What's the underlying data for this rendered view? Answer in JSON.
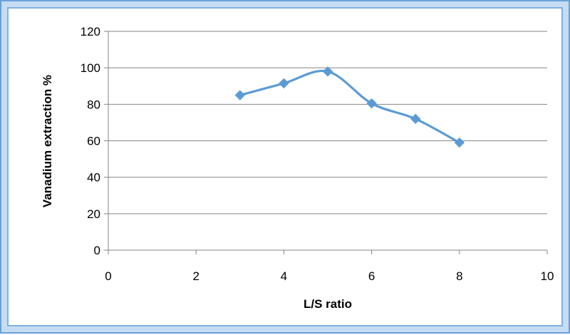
{
  "chart_data": {
    "type": "scatter",
    "title": "",
    "xlabel": "L/S ratio",
    "ylabel": "Vanadium extraction %",
    "xlim": [
      0,
      10
    ],
    "ylim": [
      0,
      120
    ],
    "xticks": [
      0,
      2,
      4,
      6,
      8,
      10
    ],
    "yticks": [
      0,
      20,
      40,
      60,
      80,
      100,
      120
    ],
    "grid": "horizontal",
    "legend": "none",
    "line_style": "smoothed",
    "marker": "diamond",
    "colors": {
      "series": "#5b9bd5",
      "grid": "#868686",
      "frame_outer": "#6aa0d8",
      "frame_inner": "#c6dcf3"
    },
    "series": [
      {
        "x": [
          3,
          4,
          5,
          6,
          7,
          8
        ],
        "values": [
          85,
          91.5,
          98,
          80.5,
          72,
          59
        ]
      }
    ]
  }
}
